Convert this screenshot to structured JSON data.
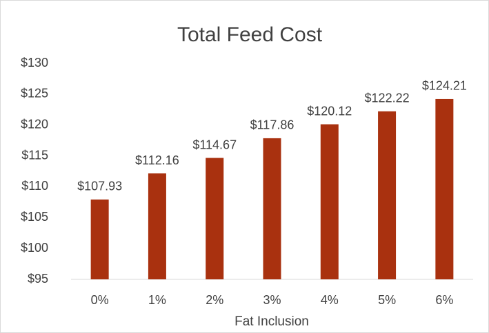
{
  "chart_data": {
    "type": "bar",
    "title": "Total Feed Cost",
    "x_label": "Fat Inclusion",
    "categories": [
      "0%",
      "1%",
      "2%",
      "3%",
      "4%",
      "5%",
      "6%"
    ],
    "values": [
      107.93,
      112.16,
      114.67,
      117.86,
      120.12,
      122.22,
      124.21
    ],
    "value_labels": [
      "$107.93",
      "$112.16",
      "$114.67",
      "$117.86",
      "$120.12",
      "$122.22",
      "$124.21"
    ],
    "color": "#a9310f",
    "ylim": [
      95,
      130
    ],
    "yticks": [
      {
        "value": 95,
        "label": "$95"
      },
      {
        "value": 100,
        "label": "$100"
      },
      {
        "value": 105,
        "label": "$105"
      },
      {
        "value": 110,
        "label": "$110"
      },
      {
        "value": 115,
        "label": "$115"
      },
      {
        "value": 120,
        "label": "$120"
      },
      {
        "value": 125,
        "label": "$125"
      },
      {
        "value": 130,
        "label": "$130"
      }
    ],
    "grid": false
  }
}
